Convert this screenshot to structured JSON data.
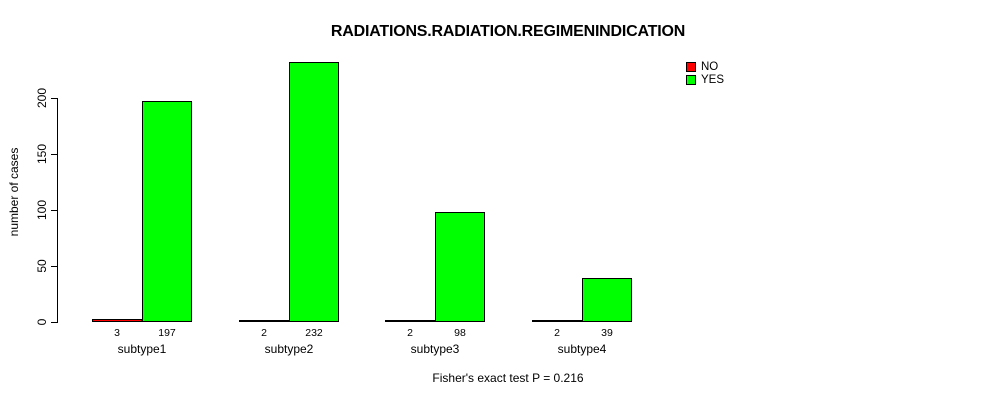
{
  "chart_data": {
    "type": "bar",
    "title": "RADIATIONS.RADIATION.REGIMENINDICATION",
    "ylabel": "number of cases",
    "xlabel": "",
    "categories": [
      "subtype1",
      "subtype2",
      "subtype3",
      "subtype4"
    ],
    "series": [
      {
        "name": "NO",
        "color": "#ff0000",
        "values": [
          3,
          2,
          2,
          2
        ]
      },
      {
        "name": "YES",
        "color": "#00ff00",
        "values": [
          197,
          232,
          98,
          39
        ]
      }
    ],
    "yticks": [
      0,
      50,
      100,
      150,
      200
    ],
    "ylim": [
      0,
      240
    ],
    "grid": false,
    "bar_value_labels_shown": true,
    "legend_position": "top-right",
    "axis_color": "#000000",
    "bar_border_color": "#000000",
    "footnote": "Fisher's exact test P = 0.216"
  }
}
